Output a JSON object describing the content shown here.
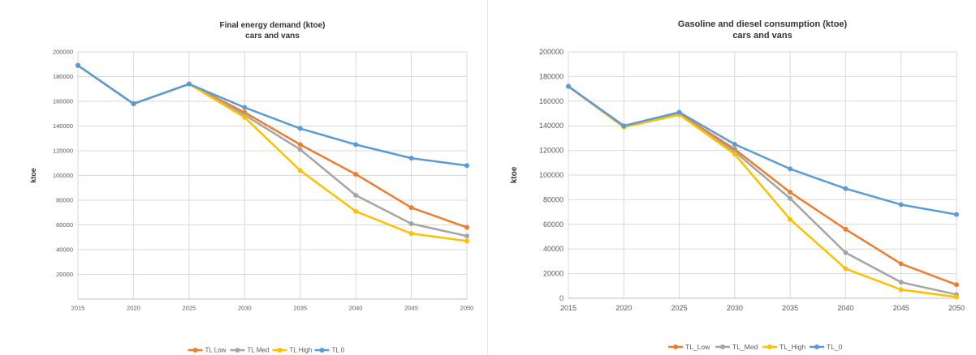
{
  "chart_data": [
    {
      "type": "line",
      "title": "Final energy demand (ktoe)",
      "subtitle": "cars and vans",
      "xlabel": "",
      "ylabel": "ktoe",
      "x": [
        2015,
        2020,
        2025,
        2030,
        2035,
        2040,
        2045,
        2050
      ],
      "ylim": [
        0,
        200000
      ],
      "yticks": [
        20000,
        40000,
        60000,
        80000,
        100000,
        120000,
        140000,
        160000,
        180000,
        200000
      ],
      "ytick_labels": [
        "20000",
        "40000",
        "60000",
        "80000",
        "100000",
        "120000",
        "140000",
        "160000",
        "180000",
        "200000"
      ],
      "grid": true,
      "legend": "bottom",
      "series": [
        {
          "name": "TL Low",
          "color": "#ED7D31",
          "values": [
            189000,
            158000,
            174000,
            151000,
            125000,
            101000,
            74000,
            58000
          ]
        },
        {
          "name": "TL Med",
          "color": "#A5A5A5",
          "values": [
            189000,
            158000,
            174000,
            149000,
            121000,
            84000,
            61000,
            51000
          ]
        },
        {
          "name": "TL High",
          "color": "#FFC000",
          "values": [
            189000,
            158000,
            174000,
            147000,
            104000,
            71000,
            53000,
            47000
          ]
        },
        {
          "name": "TL 0",
          "color": "#5B9BD5",
          "values": [
            189000,
            158000,
            174000,
            155000,
            138000,
            125000,
            114000,
            108000
          ]
        }
      ]
    },
    {
      "type": "line",
      "title": "Gasoline and diesel consumption (ktoe)",
      "subtitle": "cars and vans",
      "xlabel": "",
      "ylabel": "ktoe",
      "x": [
        2015,
        2020,
        2025,
        2030,
        2035,
        2040,
        2045,
        2050
      ],
      "ylim": [
        0,
        200000
      ],
      "yticks": [
        0,
        20000,
        40000,
        60000,
        80000,
        100000,
        120000,
        140000,
        160000,
        180000,
        200000
      ],
      "ytick_labels": [
        "0",
        "20000",
        "40000",
        "60000",
        "80000",
        "100000",
        "120000",
        "140000",
        "160000",
        "180000",
        "200000"
      ],
      "grid": true,
      "legend": "bottom",
      "series": [
        {
          "name": "TL_Low",
          "color": "#ED7D31",
          "values": [
            172000,
            139000,
            150000,
            121000,
            86000,
            56000,
            28000,
            11000
          ]
        },
        {
          "name": "TL_Med",
          "color": "#A5A5A5",
          "values": [
            172000,
            139000,
            149000,
            119000,
            81000,
            37000,
            13000,
            3000
          ]
        },
        {
          "name": "TL_High",
          "color": "#FFC000",
          "values": [
            172000,
            139000,
            149000,
            117000,
            64000,
            24000,
            7000,
            1000
          ]
        },
        {
          "name": "TL_0",
          "color": "#5B9BD5",
          "values": [
            172000,
            140000,
            151000,
            125000,
            105000,
            89000,
            76000,
            68000
          ]
        }
      ]
    }
  ]
}
